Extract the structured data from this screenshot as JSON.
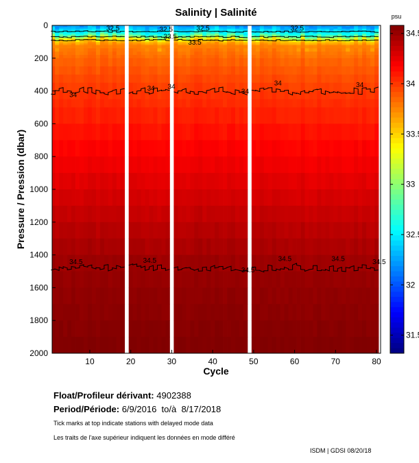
{
  "chart_data": {
    "type": "heatmap",
    "title": "Salinity | Salinité",
    "xlabel": "Cycle",
    "ylabel": "Pressure / Pression (dbar)",
    "xlim": [
      0.8,
      81
    ],
    "ylim": [
      2000,
      0
    ],
    "xticks": [
      10,
      20,
      30,
      40,
      50,
      60,
      70,
      80
    ],
    "yticks": [
      0,
      200,
      400,
      600,
      800,
      1000,
      1200,
      1400,
      1600,
      1800,
      2000
    ],
    "missing_cycles": [
      19,
      30,
      49
    ],
    "cycles_first": 1,
    "cycles_last": 80,
    "mean_profile": {
      "pressure": [
        0,
        20,
        50,
        70,
        90,
        120,
        200,
        400,
        800,
        1200,
        1480,
        2000
      ],
      "salinity": [
        32.2,
        32.35,
        32.6,
        33.0,
        33.5,
        33.75,
        33.85,
        34.0,
        34.2,
        34.38,
        34.5,
        34.58
      ]
    },
    "contour_levels": [
      "32.5",
      "33",
      "33.5",
      "34",
      "34.5"
    ],
    "contour_labels": [
      {
        "text": "32.5",
        "cycle": 14,
        "pressure": 15
      },
      {
        "text": "32.5",
        "cycle": 27,
        "pressure": 20
      },
      {
        "text": "33.5",
        "cycle": 28,
        "pressure": 65
      },
      {
        "text": "32.5",
        "cycle": 36,
        "pressure": 15
      },
      {
        "text": "33.5",
        "cycle": 34,
        "pressure": 100
      },
      {
        "text": "32.5",
        "cycle": 59,
        "pressure": 15
      },
      {
        "text": "34",
        "cycle": 5,
        "pressure": 420
      },
      {
        "text": "34",
        "cycle": 24,
        "pressure": 380
      },
      {
        "text": "34",
        "cycle": 29,
        "pressure": 370
      },
      {
        "text": "34",
        "cycle": 47,
        "pressure": 400
      },
      {
        "text": "34",
        "cycle": 55,
        "pressure": 350
      },
      {
        "text": "34",
        "cycle": 75,
        "pressure": 360
      },
      {
        "text": "34.5",
        "cycle": 5,
        "pressure": 1440
      },
      {
        "text": "34.5",
        "cycle": 23,
        "pressure": 1430
      },
      {
        "text": "34.5",
        "cycle": 47,
        "pressure": 1490
      },
      {
        "text": "34.5",
        "cycle": 56,
        "pressure": 1420
      },
      {
        "text": "34.5",
        "cycle": 69,
        "pressure": 1420
      },
      {
        "text": "34.5",
        "cycle": 79,
        "pressure": 1440
      }
    ],
    "colorbar": {
      "label": "psu",
      "range": [
        31.32,
        34.58
      ],
      "ticks": [
        "31.5",
        "32",
        "32.5",
        "33",
        "33.5",
        "34",
        "34.5"
      ],
      "colormap": "jet"
    }
  },
  "info": {
    "float_label": "Float/Profileur dérivant:",
    "float_value": "4902388",
    "period_label": "Period/Période:",
    "period_value": "6/9/2016  to/à  8/17/2018",
    "note_en": "Tick marks at top indicate stations with delayed mode data",
    "note_fr": "Les traits de l'axe supérieur indiquent les données en mode différé",
    "credit": "ISDM | GDSI  08/20/18"
  }
}
